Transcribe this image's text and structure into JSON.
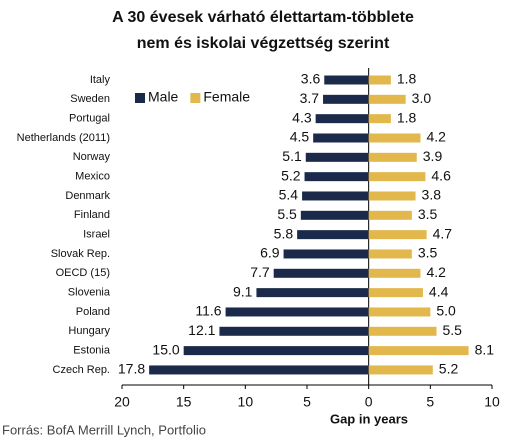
{
  "chart_data": {
    "type": "butterfly",
    "title": "A 30 évesek várható élettartam-többlete",
    "subtitle": "nem és iskolai végzettség szerint",
    "x_label": "Gap in years",
    "source": "Forrás: BofA Merrill Lynch, Portfolio",
    "categories": [
      "Italy",
      "Sweden",
      "Portugal",
      "Netherlands (2011)",
      "Norway",
      "Mexico",
      "Denmark",
      "Finland",
      "Israel",
      "Slovak Rep.",
      "OECD (15)",
      "Slovenia",
      "Poland",
      "Hungary",
      "Estonia",
      "Czech Rep."
    ],
    "series": [
      {
        "name": "Male",
        "color": "#1b2a4a",
        "values": [
          -3.6,
          -3.7,
          -4.3,
          -4.5,
          -5.1,
          -5.2,
          -5.4,
          -5.5,
          -5.8,
          -6.9,
          -7.7,
          -9.1,
          -11.6,
          -12.1,
          -15.0,
          -17.8
        ],
        "value_labels": [
          "3.6",
          "3.7",
          "4.3",
          "4.5",
          "5.1",
          "5.2",
          "5.4",
          "5.5",
          "5.8",
          "6.9",
          "7.7",
          "9.1",
          "11.6",
          "12.1",
          "15.0",
          "17.8"
        ]
      },
      {
        "name": "Female",
        "color": "#e2b74c",
        "values": [
          1.8,
          3.0,
          1.8,
          4.2,
          3.9,
          4.6,
          3.8,
          3.5,
          4.7,
          3.5,
          4.2,
          4.4,
          5.0,
          5.5,
          8.1,
          5.2
        ],
        "value_labels": [
          "1.8",
          "3.0",
          "1.8",
          "4.2",
          "3.9",
          "4.6",
          "3.8",
          "3.5",
          "4.7",
          "3.5",
          "4.2",
          "4.4",
          "5.0",
          "5.5",
          "8.1",
          "5.2"
        ]
      }
    ],
    "xlim": [
      -20,
      10
    ],
    "xticks": [
      {
        "value": -20,
        "label": "20"
      },
      {
        "value": -15,
        "label": "15"
      },
      {
        "value": -10,
        "label": "10"
      },
      {
        "value": -5,
        "label": "5"
      },
      0,
      5,
      10
    ],
    "legend": "top-left"
  }
}
